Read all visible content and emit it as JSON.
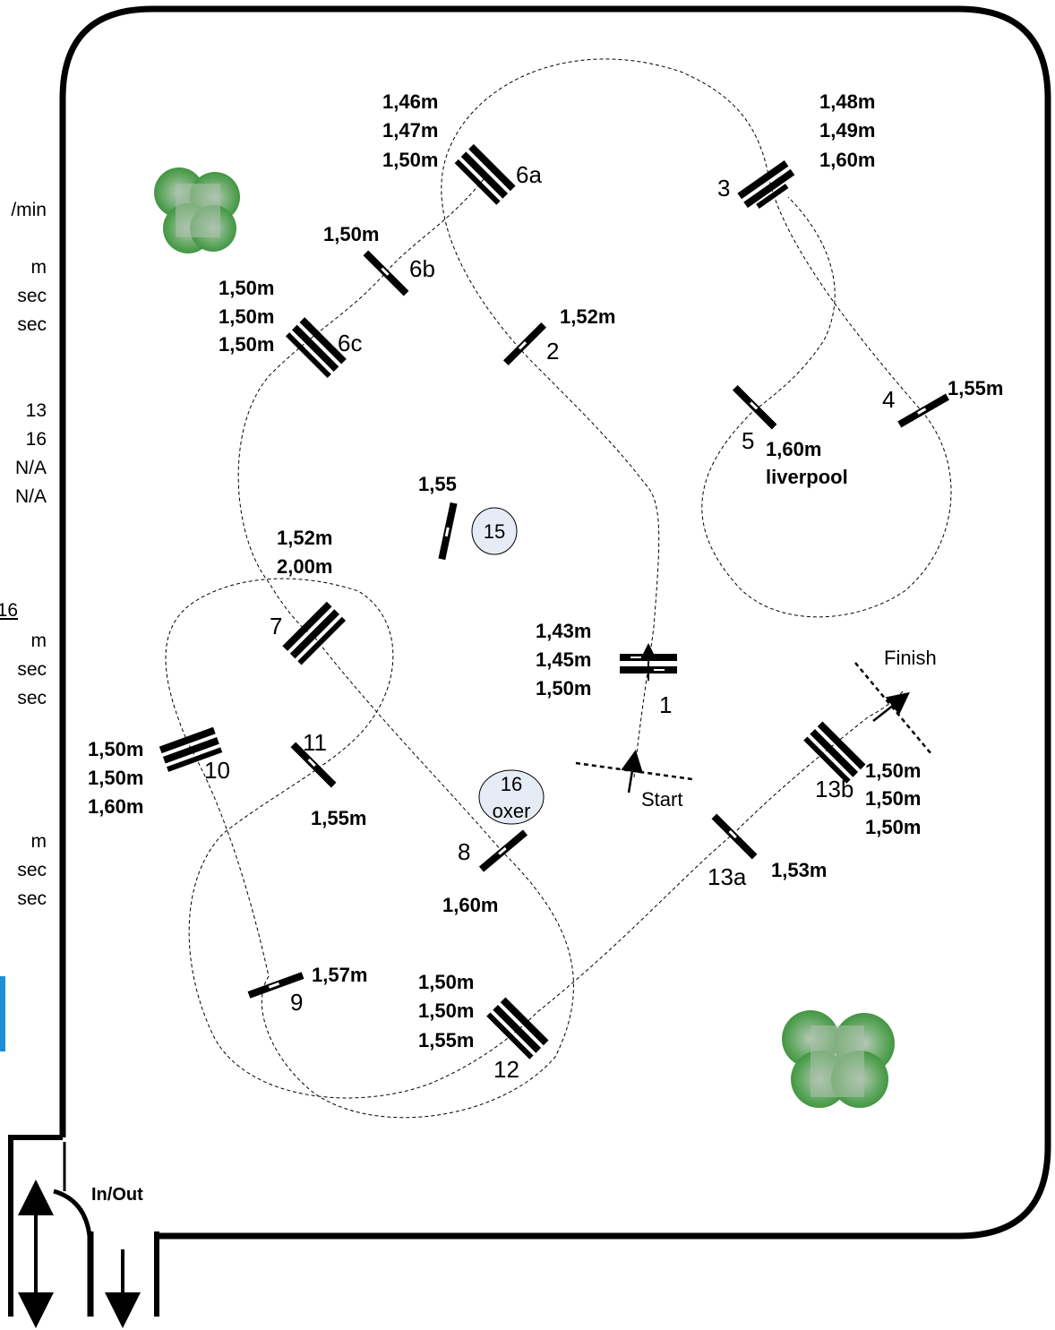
{
  "side_panel": {
    "items": [
      "/min",
      "m",
      "sec",
      "sec",
      "13",
      "16",
      "N/A",
      "N/A",
      "16",
      "m",
      "sec",
      "sec",
      "m",
      "sec",
      "sec"
    ]
  },
  "markers": {
    "start": "Start",
    "finish": "Finish",
    "in_out": "In/Out"
  },
  "obstacles": [
    {
      "id": "1",
      "heights": [
        "1,43m",
        "1,45m",
        "1,50m"
      ]
    },
    {
      "id": "2",
      "heights": [
        "1,52m"
      ]
    },
    {
      "id": "3",
      "heights": [
        "1,48m",
        "1,49m",
        "1,60m"
      ]
    },
    {
      "id": "4",
      "heights": [
        "1,55m"
      ]
    },
    {
      "id": "5",
      "heights": [
        "1,60m",
        "liverpool"
      ]
    },
    {
      "id": "6a",
      "heights": [
        "1,46m",
        "1,47m",
        "1,50m"
      ]
    },
    {
      "id": "6b",
      "heights": [
        "1,50m"
      ]
    },
    {
      "id": "6c",
      "heights": [
        "1,50m",
        "1,50m",
        "1,50m"
      ]
    },
    {
      "id": "7",
      "heights": [
        "1,52m",
        "2,00m"
      ]
    },
    {
      "id": "8",
      "heights": [
        "1,60m"
      ]
    },
    {
      "id": "9",
      "heights": [
        "1,57m"
      ]
    },
    {
      "id": "10",
      "heights": [
        "1,50m",
        "1,50m",
        "1,60m"
      ]
    },
    {
      "id": "11",
      "heights": [
        "1,55m"
      ]
    },
    {
      "id": "12",
      "heights": [
        "1,50m",
        "1,50m",
        "1,55m"
      ]
    },
    {
      "id": "13a",
      "heights": [
        "1,53m"
      ]
    },
    {
      "id": "13b",
      "heights": [
        "1,50m",
        "1,50m",
        "1,50m"
      ]
    },
    {
      "id": "15",
      "heights": [
        "1,55"
      ]
    },
    {
      "id": "16",
      "heights": [
        "oxer"
      ]
    }
  ],
  "colors": {
    "tree": "#3f9a3f",
    "tree_light": "#a9c9a9",
    "badge_fill": "#e6ecf5",
    "accent_bar": "#1e8fd6"
  }
}
